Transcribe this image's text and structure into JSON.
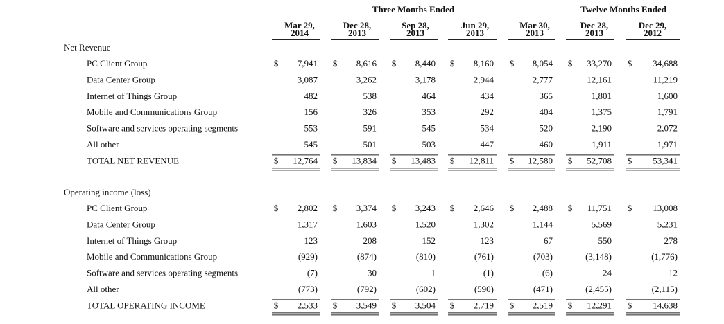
{
  "header": {
    "group_headers": [
      {
        "label": "Three Months Ended"
      },
      {
        "label": "Twelve Months Ended"
      }
    ],
    "columns": [
      [
        "Mar 29,",
        "2014"
      ],
      [
        "Dec 28,",
        "2013"
      ],
      [
        "Sep 28,",
        "2013"
      ],
      [
        "Jun 29,",
        "2013"
      ],
      [
        "Mar 30,",
        "2013"
      ],
      [
        "Dec 28,",
        "2013"
      ],
      [
        "Dec 29,",
        "2012"
      ]
    ]
  },
  "sections": [
    {
      "title": "Net Revenue",
      "rows": [
        {
          "label": "PC Client Group",
          "currency": "$",
          "values": [
            "7,941",
            "8,616",
            "8,440",
            "8,160",
            "8,054",
            "33,270",
            "34,688"
          ]
        },
        {
          "label": "Data Center Group",
          "values": [
            "3,087",
            "3,262",
            "3,178",
            "2,944",
            "2,777",
            "12,161",
            "11,219"
          ]
        },
        {
          "label": "Internet of Things Group",
          "values": [
            "482",
            "538",
            "464",
            "434",
            "365",
            "1,801",
            "1,600"
          ]
        },
        {
          "label": "Mobile and Communications Group",
          "values": [
            "156",
            "326",
            "353",
            "292",
            "404",
            "1,375",
            "1,791"
          ]
        },
        {
          "label": "Software and services operating segments",
          "values": [
            "553",
            "591",
            "545",
            "534",
            "520",
            "2,190",
            "2,072"
          ]
        },
        {
          "label": "All other",
          "values": [
            "545",
            "501",
            "503",
            "447",
            "460",
            "1,911",
            "1,971"
          ]
        }
      ],
      "total": {
        "label": "TOTAL NET REVENUE",
        "currency": "$",
        "values": [
          "12,764",
          "13,834",
          "13,483",
          "12,811",
          "12,580",
          "52,708",
          "53,341"
        ]
      }
    },
    {
      "title": "Operating income (loss)",
      "rows": [
        {
          "label": "PC Client Group",
          "currency": "$",
          "values": [
            "2,802",
            "3,374",
            "3,243",
            "2,646",
            "2,488",
            "11,751",
            "13,008"
          ]
        },
        {
          "label": "Data Center Group",
          "values": [
            "1,317",
            "1,603",
            "1,520",
            "1,302",
            "1,144",
            "5,569",
            "5,231"
          ]
        },
        {
          "label": "Internet of Things Group",
          "values": [
            "123",
            "208",
            "152",
            "123",
            "67",
            "550",
            "278"
          ]
        },
        {
          "label": "Mobile and Communications Group",
          "values": [
            "(929)",
            "(874)",
            "(810)",
            "(761)",
            "(703)",
            "(3,148)",
            "(1,776)"
          ]
        },
        {
          "label": "Software and services operating segments",
          "values": [
            "(7)",
            "30",
            "1",
            "(1)",
            "(6)",
            "24",
            "12"
          ]
        },
        {
          "label": "All other",
          "values": [
            "(773)",
            "(792)",
            "(602)",
            "(590)",
            "(471)",
            "(2,455)",
            "(2,115)"
          ]
        }
      ],
      "total": {
        "label": "TOTAL OPERATING INCOME",
        "currency": "$",
        "values": [
          "2,533",
          "3,549",
          "3,504",
          "2,719",
          "2,519",
          "12,291",
          "14,638"
        ]
      }
    }
  ]
}
